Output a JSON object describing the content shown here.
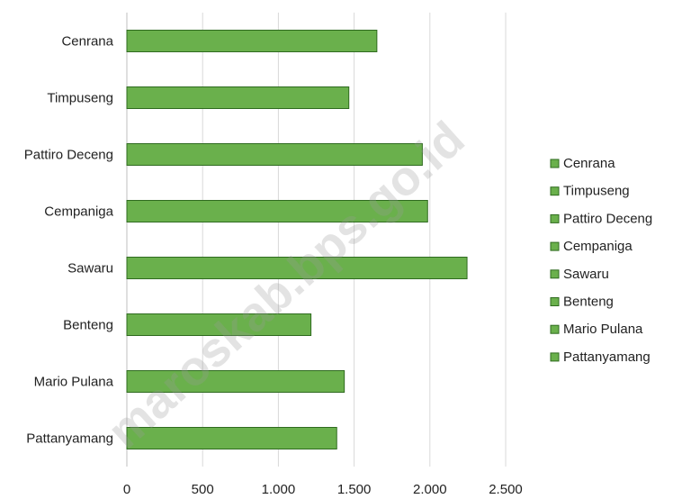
{
  "chart_data": {
    "type": "bar",
    "orientation": "horizontal",
    "categories": [
      "Cenrana",
      "Timpuseng",
      "Pattiro Deceng",
      "Cempaniga",
      "Sawaru",
      "Benteng",
      "Mario Pulana",
      "Pattanyamang"
    ],
    "values": [
      1650,
      1465,
      1950,
      1985,
      2245,
      1215,
      1435,
      1385
    ],
    "xlim": [
      0,
      2500
    ],
    "x_ticks": [
      0,
      500,
      1000,
      1500,
      2000,
      2500
    ],
    "x_tick_labels": [
      "0",
      "500",
      "1.000",
      "1.500",
      "2.000",
      "2.500"
    ],
    "gridlines": true,
    "legend": {
      "placement": "right",
      "entries": [
        "Cenrana",
        "Timpuseng",
        "Pattiro Deceng",
        "Cempaniga",
        "Sawaru",
        "Benteng",
        "Mario Pulana",
        "Pattanyamang"
      ]
    },
    "colors": {
      "bar_fill": "#6ab04c",
      "bar_stroke": "#2f6b1f",
      "grid": "#d9d9d9"
    }
  },
  "watermark": "maroskab.bps.go.id"
}
